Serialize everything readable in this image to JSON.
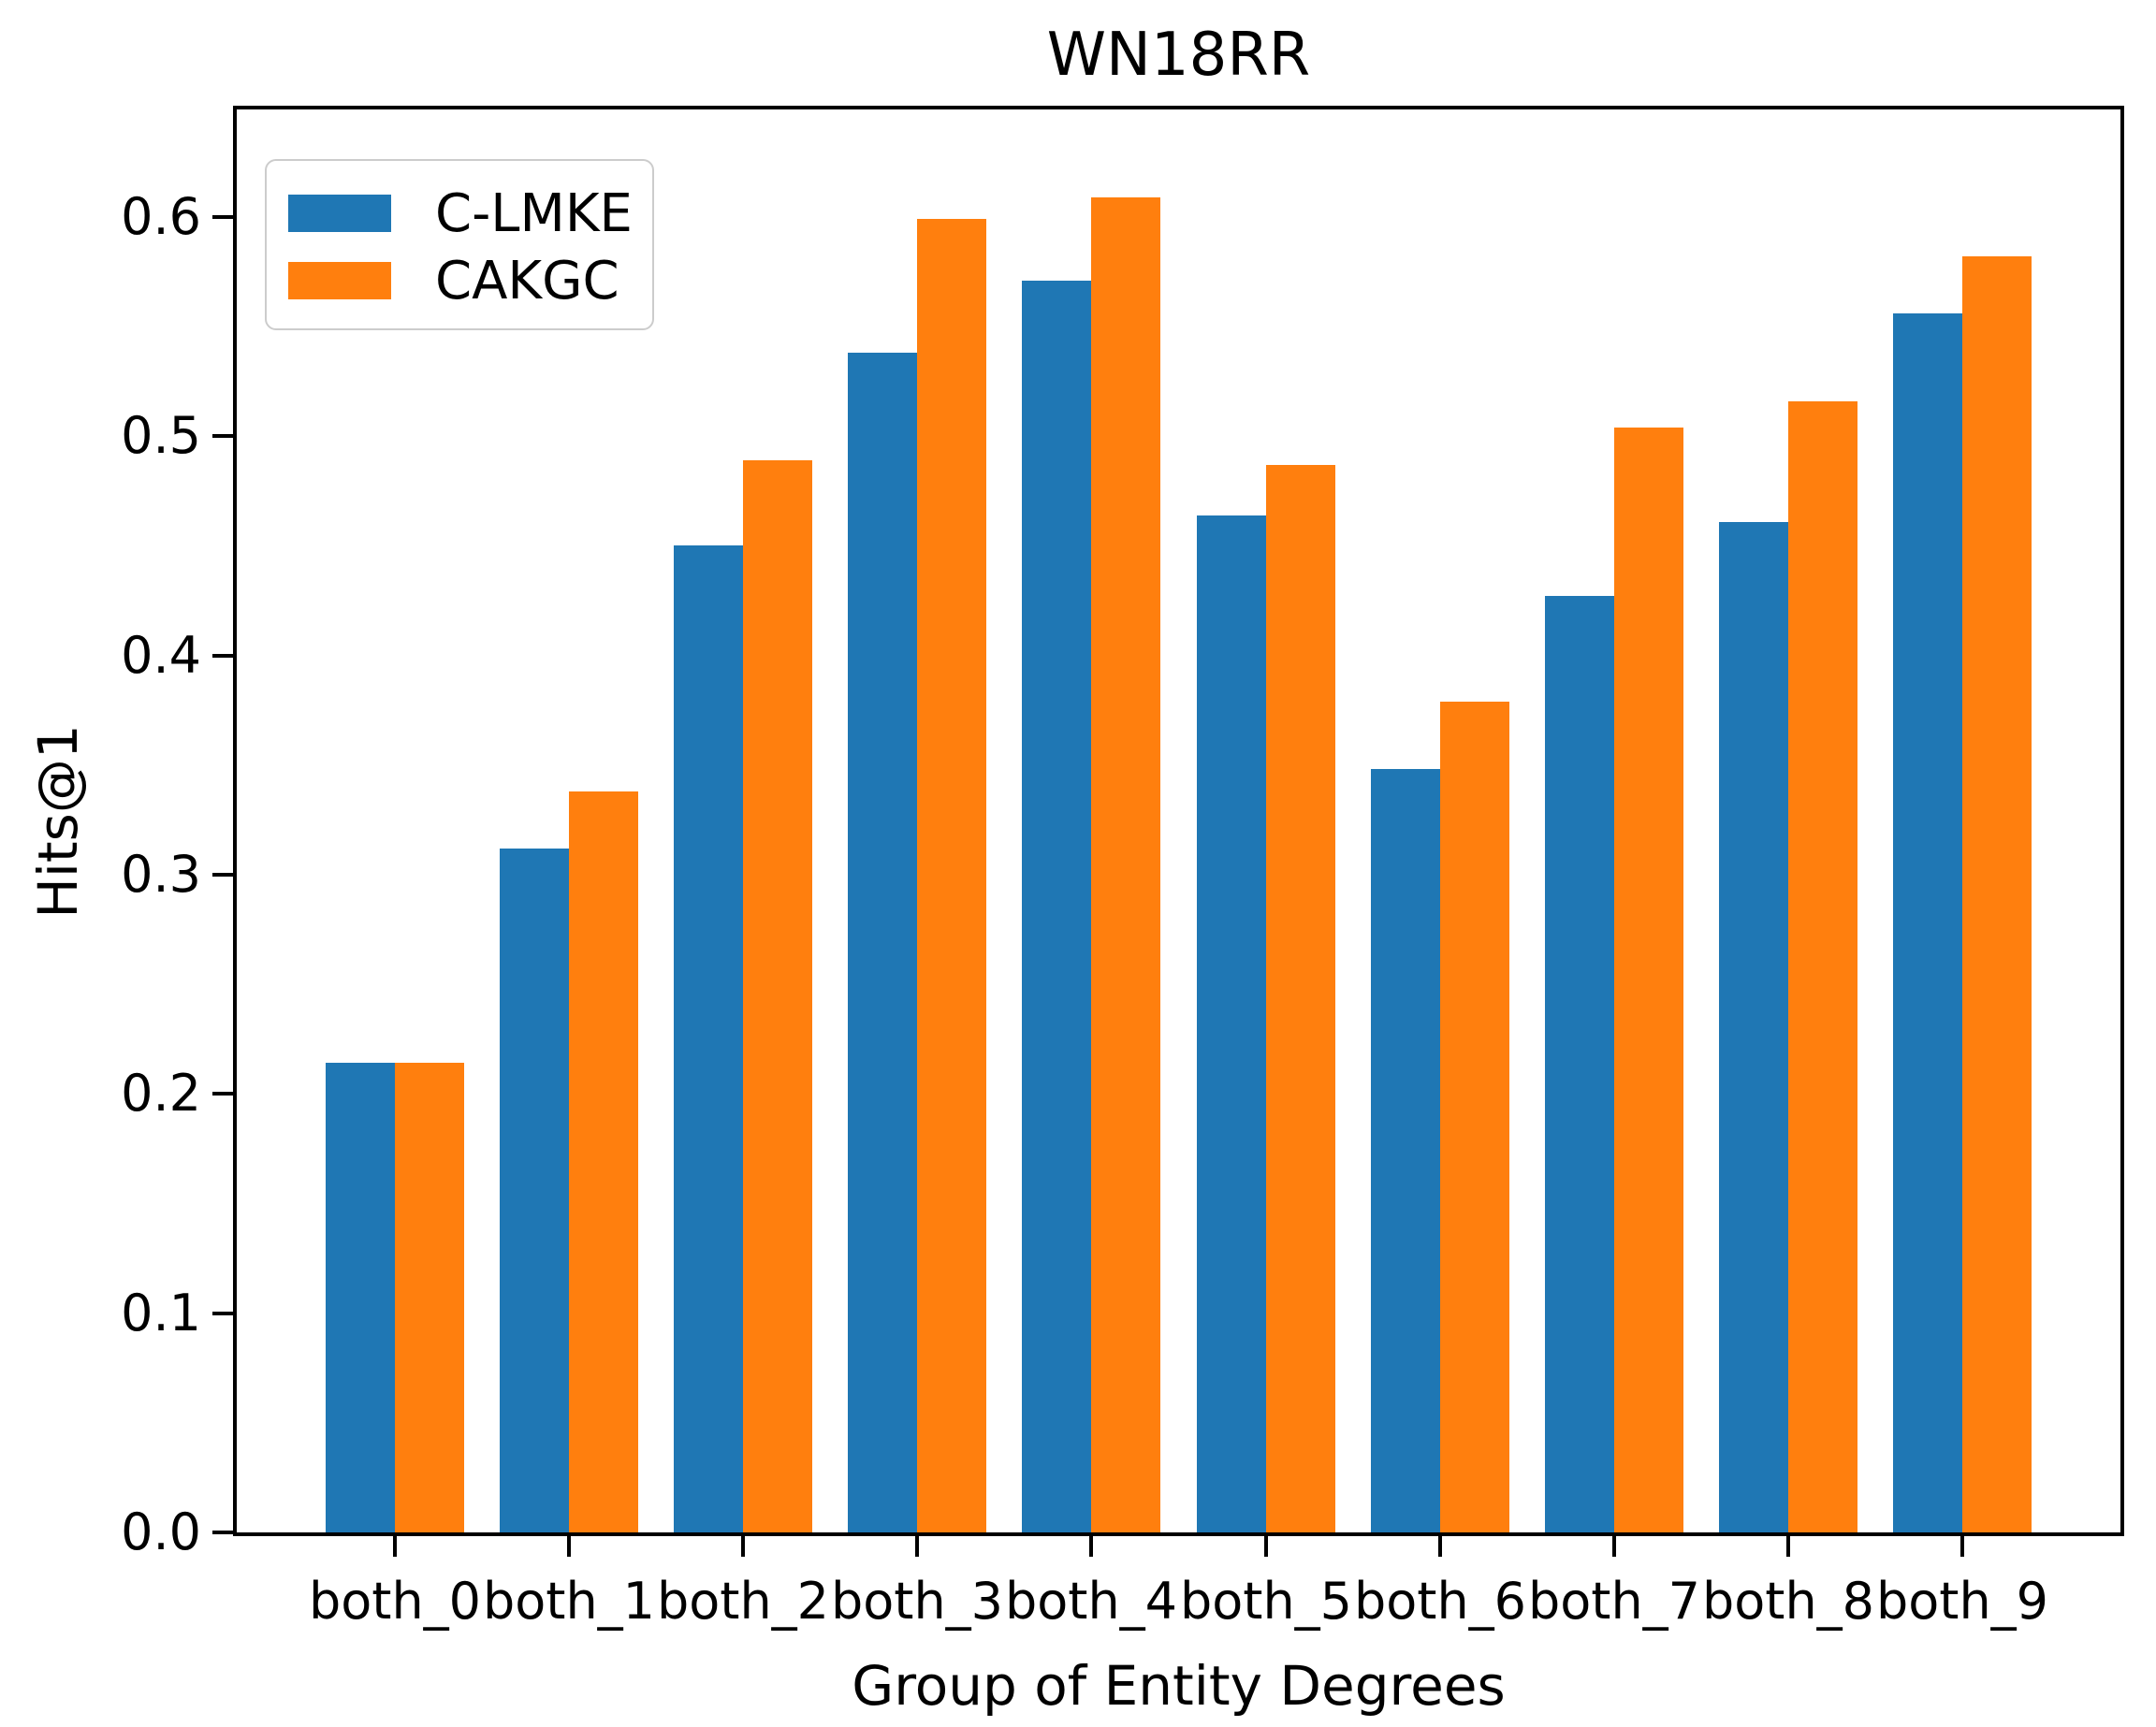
{
  "chart_data": {
    "type": "bar",
    "title": "WN18RR",
    "xlabel": "Group of Entity Degrees",
    "ylabel": "Hits@1",
    "categories": [
      "both_0",
      "both_1",
      "both_2",
      "both_3",
      "both_4",
      "both_5",
      "both_6",
      "both_7",
      "both_8",
      "both_9"
    ],
    "series": [
      {
        "name": "C-LMKE",
        "color": "#1f77b4",
        "values": [
          0.214,
          0.312,
          0.45,
          0.538,
          0.571,
          0.464,
          0.348,
          0.427,
          0.461,
          0.556
        ]
      },
      {
        "name": "CAKGC",
        "color": "#ff7f0e",
        "values": [
          0.214,
          0.338,
          0.489,
          0.599,
          0.609,
          0.487,
          0.379,
          0.504,
          0.516,
          0.582
        ]
      }
    ],
    "ylim": [
      0,
      0.649
    ],
    "yticks": [
      "0.0",
      "0.1",
      "0.2",
      "0.3",
      "0.4",
      "0.5",
      "0.6"
    ],
    "bar_width_fraction": 0.4,
    "grid": false,
    "legend_position": "upper left"
  }
}
